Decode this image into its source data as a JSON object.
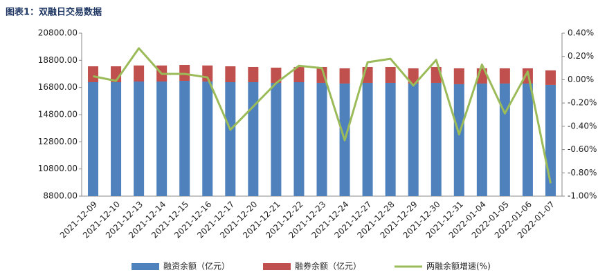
{
  "chart_data": {
    "type": "bar",
    "title": "图表1：双融日交易数据",
    "categories": [
      "2021-12-09",
      "2021-12-10",
      "2021-12-13",
      "2021-12-14",
      "2021-12-15",
      "2021-12-16",
      "2021-12-17",
      "2021-12-20",
      "2021-12-21",
      "2021-12-22",
      "2021-12-23",
      "2021-12-24",
      "2021-12-27",
      "2021-12-28",
      "2021-12-29",
      "2021-12-30",
      "2021-12-31",
      "2022-01-04",
      "2022-01-05",
      "2022-01-06",
      "2022-01-07"
    ],
    "series": [
      {
        "name": "融资余额（亿元）",
        "color": "#4f81bd",
        "stack": true,
        "values": [
          17190,
          17190,
          17240,
          17240,
          17290,
          17240,
          17190,
          17190,
          17140,
          17190,
          17140,
          17090,
          17140,
          17140,
          17090,
          17140,
          17040,
          17090,
          17090,
          17090,
          16990
        ]
      },
      {
        "name": "融券余额（亿元）",
        "color": "#c0504d",
        "stack": true,
        "values": [
          1170,
          1170,
          1180,
          1180,
          1170,
          1180,
          1170,
          1120,
          1120,
          1120,
          1170,
          1120,
          1170,
          1170,
          1120,
          1170,
          1170,
          1120,
          1120,
          1120,
          1070
        ]
      },
      {
        "name": "两融余额增速(%)",
        "color": "#9bbb59",
        "type": "line",
        "axis": "y2",
        "values": [
          0.03,
          -0.01,
          0.27,
          0.05,
          0.05,
          0.02,
          -0.43,
          -0.23,
          -0.03,
          0.12,
          0.1,
          -0.52,
          0.15,
          0.18,
          -0.05,
          0.17,
          -0.47,
          0.13,
          -0.29,
          0.07,
          -0.89
        ]
      }
    ],
    "ylim": [
      8800,
      20800
    ],
    "yticks": [
      {
        "value": 8800,
        "label": "8800.00"
      },
      {
        "value": 10800,
        "label": "10800.00"
      },
      {
        "value": 12800,
        "label": "12800.00"
      },
      {
        "value": 14800,
        "label": "14800.00"
      },
      {
        "value": 16800,
        "label": "16800.00"
      },
      {
        "value": 18800,
        "label": "18800.00"
      },
      {
        "value": 20800,
        "label": "20800.00"
      }
    ],
    "y2lim": [
      -1.0,
      0.4
    ],
    "y2ticks": [
      {
        "value": -1.0,
        "label": "-1.00%"
      },
      {
        "value": -0.8,
        "label": "-0.80%"
      },
      {
        "value": -0.6,
        "label": "-0.60%"
      },
      {
        "value": -0.4,
        "label": "-0.40%"
      },
      {
        "value": -0.2,
        "label": "-0.20%"
      },
      {
        "value": 0,
        "label": "0.00%"
      },
      {
        "value": 0.2,
        "label": "0.20%"
      },
      {
        "value": 0.4,
        "label": "0.40%"
      }
    ],
    "legend": "bottom"
  }
}
